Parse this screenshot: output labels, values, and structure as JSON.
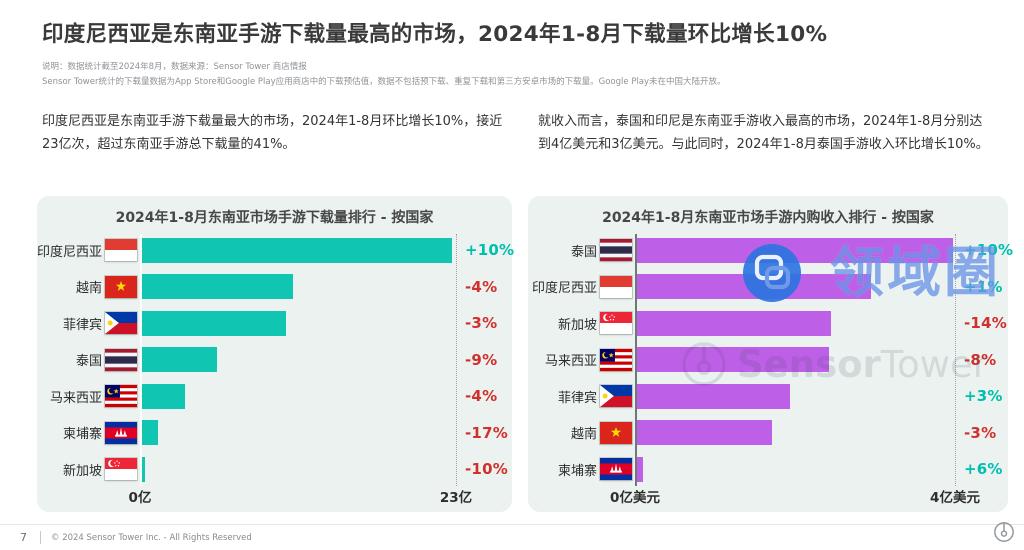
{
  "page": {
    "title": "印度尼西亚是东南亚手游下载量最高的市场，2024年1-8月下载量环比增长10%",
    "note_line1": "说明：数据统计截至2024年8月，数据来源：Sensor Tower 商店情报",
    "note_line2": "Sensor Tower统计的下载量数据为App Store和Google Play应用商店中的下载预估值，数据不包括预下载、重复下载和第三方安卓市场的下载量。Google Play未在中国大陆开放。",
    "para_left": "印度尼西亚是东南亚手游下载量最大的市场，2024年1-8月环比增长10%，接近23亿次，超过东南亚手游总下载量的41%。",
    "para_right": "就收入而言，泰国和印尼是东南亚手游收入最高的市场，2024年1-8月分别达到4亿美元和3亿美元。与此同时，2024年1-8月泰国手游收入环比增长10%。",
    "watermarks": {
      "domain_text": "领域圈",
      "sensortower_part1": "Sensor",
      "sensortower_part2": "Tower"
    },
    "footer": {
      "page_number": "7",
      "copyright": "© 2024 Sensor Tower Inc. - All Rights Reserved"
    }
  },
  "colors": {
    "positive": "#00bfad",
    "negative": "#d0312d",
    "download_bar": "#10c5b1",
    "revenue_bar": "#be5fe8",
    "card_background": "#ebf2f0",
    "watermark_blue": "#2b67dc"
  },
  "chart_data": [
    {
      "type": "bar",
      "orientation": "horizontal",
      "title": "2024年1-8月东南亚市场手游下载量排行 - 按国家",
      "categories": [
        "印度尼西亚",
        "越南",
        "菲律宾",
        "泰国",
        "马来西亚",
        "柬埔寨",
        "新加坡"
      ],
      "flags": [
        "indonesia",
        "vietnam",
        "philippines",
        "thailand",
        "malaysia",
        "cambodia",
        "singapore"
      ],
      "values": [
        22.7,
        11.1,
        10.6,
        5.6,
        3.3,
        1.3,
        0.4
      ],
      "unit": "亿次下载",
      "change_labels": [
        "+10%",
        "-4%",
        "-3%",
        "-9%",
        "-4%",
        "-17%",
        "-10%"
      ],
      "xlim": [
        0,
        23
      ],
      "x_axis_labels": [
        "0亿",
        "23亿"
      ],
      "bar_color": "#10c5b1",
      "grid": false,
      "legend": false
    },
    {
      "type": "bar",
      "orientation": "horizontal",
      "title": "2024年1-8月东南亚市场手游内购收入排行 - 按国家",
      "categories": [
        "泰国",
        "印度尼西亚",
        "新加坡",
        "马来西亚",
        "菲律宾",
        "越南",
        "柬埔寨"
      ],
      "flags": [
        "thailand",
        "indonesia",
        "singapore",
        "malaysia",
        "philippines",
        "vietnam",
        "cambodia"
      ],
      "values": [
        3.98,
        2.95,
        2.45,
        2.42,
        1.94,
        1.71,
        0.1
      ],
      "unit": "亿美元",
      "change_labels": [
        "+10%",
        "+1%",
        "-14%",
        "-8%",
        "+3%",
        "-3%",
        "+6%"
      ],
      "xlim": [
        0,
        4
      ],
      "x_axis_labels": [
        "0亿美元",
        "4亿美元"
      ],
      "bar_color": "#be5fe8",
      "grid": false,
      "legend": false
    }
  ]
}
